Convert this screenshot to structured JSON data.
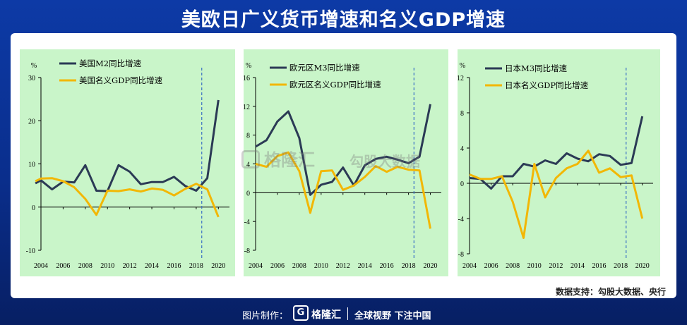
{
  "title": "美欧日广义货币增速和名义GDP增速",
  "source": "数据支持：勾股大数据、央行",
  "footer": {
    "made_by": "图片制作：",
    "brand": "格隆汇",
    "slogan": "全球视野 下注中国",
    "logo_text": "G"
  },
  "watermark": {
    "brand": "格隆汇",
    "site": "勾股大数据"
  },
  "colors": {
    "m2": "#2b3a55",
    "gdp": "#f2b705",
    "panel_bg": "#c9f5c9",
    "vline": "#3a6fc4"
  },
  "chart_data": [
    {
      "type": "line",
      "unit": "%",
      "ylim": [
        -10,
        30
      ],
      "yticks": [
        -10,
        0,
        10,
        20,
        30
      ],
      "xlim": [
        2004,
        2021
      ],
      "xticks": [
        2004,
        2006,
        2008,
        2010,
        2012,
        2014,
        2016,
        2018,
        2020
      ],
      "vline": 2018.5,
      "series": [
        {
          "name": "美国M2同比增速",
          "color": "#2b3a55",
          "x": [
            2003.5,
            2004,
            2005,
            2006,
            2007,
            2008,
            2009,
            2010,
            2011,
            2012,
            2013,
            2014,
            2015,
            2016,
            2017,
            2018,
            2019,
            2020
          ],
          "values": [
            5.5,
            6.2,
            4.1,
            5.9,
            5.7,
            9.7,
            3.8,
            3.7,
            9.7,
            8.2,
            5.3,
            5.8,
            5.8,
            7.0,
            4.9,
            3.8,
            6.7,
            24.8
          ]
        },
        {
          "name": "美国名义GDP同比增速",
          "color": "#f2b705",
          "x": [
            2003.5,
            2004,
            2005,
            2006,
            2007,
            2008,
            2009,
            2010,
            2011,
            2012,
            2013,
            2014,
            2015,
            2016,
            2017,
            2018,
            2019,
            2020
          ],
          "values": [
            6.0,
            6.6,
            6.7,
            6.0,
            4.6,
            1.9,
            -1.8,
            3.8,
            3.7,
            4.1,
            3.6,
            4.3,
            4.0,
            2.7,
            4.2,
            5.4,
            4.1,
            -2.3
          ]
        }
      ]
    },
    {
      "type": "line",
      "unit": "%",
      "ylim": [
        -8,
        16
      ],
      "yticks": [
        -8,
        -4,
        0,
        4,
        8,
        12,
        16
      ],
      "xlim": [
        2004,
        2021
      ],
      "xticks": [
        2004,
        2006,
        2008,
        2010,
        2012,
        2014,
        2016,
        2018,
        2020
      ],
      "vline": 2018.5,
      "series": [
        {
          "name": "欧元区M3同比增速",
          "color": "#2b3a55",
          "x": [
            2004,
            2005,
            2006,
            2007,
            2008,
            2009,
            2010,
            2011,
            2012,
            2013,
            2014,
            2015,
            2016,
            2017,
            2018,
            2019,
            2020
          ],
          "values": [
            6.4,
            7.3,
            9.9,
            11.3,
            7.6,
            -0.3,
            1.1,
            1.5,
            3.5,
            1.0,
            3.8,
            4.7,
            5.0,
            4.6,
            4.1,
            5.0,
            12.3
          ]
        },
        {
          "name": "欧元区名义GDP同比增速",
          "color": "#f2b705",
          "x": [
            2004,
            2005,
            2006,
            2007,
            2008,
            2009,
            2010,
            2011,
            2012,
            2013,
            2014,
            2015,
            2016,
            2017,
            2018,
            2019,
            2020
          ],
          "values": [
            4.0,
            3.6,
            5.1,
            5.6,
            3.0,
            -2.8,
            3.0,
            3.1,
            0.4,
            1.0,
            2.2,
            3.7,
            2.9,
            3.6,
            3.2,
            3.1,
            -5.0
          ]
        }
      ]
    },
    {
      "type": "line",
      "unit": "%",
      "ylim": [
        -8,
        12
      ],
      "yticks": [
        -8,
        -4,
        0,
        4,
        8,
        12
      ],
      "xlim": [
        2004,
        2021
      ],
      "xticks": [
        2004,
        2006,
        2008,
        2010,
        2012,
        2014,
        2016,
        2018,
        2020
      ],
      "vline": 2018.5,
      "series": [
        {
          "name": "日本M3同比增速",
          "color": "#2b3a55",
          "x": [
            2004,
            2005,
            2006,
            2007,
            2008,
            2009,
            2010,
            2011,
            2012,
            2013,
            2014,
            2015,
            2016,
            2017,
            2018,
            2019,
            2020
          ],
          "values": [
            0.6,
            0.5,
            -0.6,
            0.8,
            0.8,
            2.2,
            1.9,
            2.6,
            2.2,
            3.4,
            2.8,
            2.5,
            3.3,
            3.1,
            2.1,
            2.3,
            7.6
          ]
        },
        {
          "name": "日本名义GDP同比增速",
          "color": "#f2b705",
          "x": [
            2004,
            2005,
            2006,
            2007,
            2008,
            2009,
            2010,
            2011,
            2012,
            2013,
            2014,
            2015,
            2016,
            2017,
            2018,
            2019,
            2020
          ],
          "values": [
            1.0,
            0.5,
            0.5,
            0.8,
            -2.1,
            -6.2,
            2.2,
            -1.6,
            0.6,
            1.7,
            2.2,
            3.7,
            1.2,
            1.7,
            0.7,
            0.9,
            -4.0
          ]
        }
      ]
    }
  ]
}
